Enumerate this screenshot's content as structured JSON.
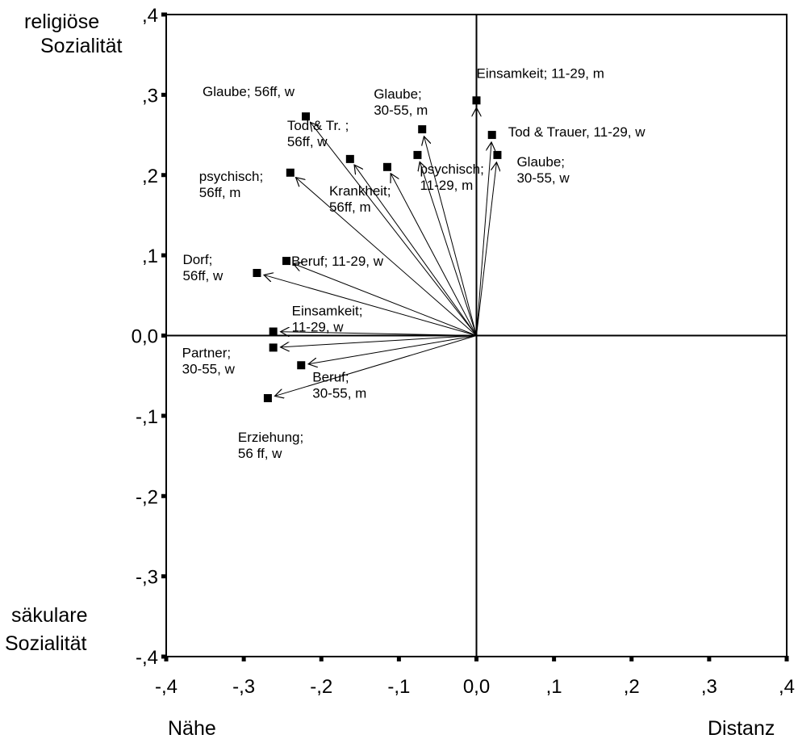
{
  "chart_data": {
    "type": "scatter",
    "xlim": [
      -0.4,
      0.4
    ],
    "ylim": [
      -0.4,
      0.4
    ],
    "x_ticks": [
      -0.4,
      -0.3,
      -0.2,
      -0.1,
      0,
      0.1,
      0.2,
      0.3,
      0.4
    ],
    "y_ticks": [
      -0.4,
      -0.3,
      -0.2,
      -0.1,
      0,
      0.1,
      0.2,
      0.3,
      0.4
    ],
    "x_tick_labels": [
      "-,4",
      "-,3",
      "-,2",
      "-,1",
      "0,0",
      ",1",
      ",2",
      ",3",
      ",4"
    ],
    "y_tick_labels": [
      "-,4",
      "-,3",
      "-,2",
      "-,1",
      "0,0",
      ",1",
      ",2",
      ",3",
      ",4"
    ],
    "x_left_label": "Nähe",
    "x_right_label": "Distanz",
    "y_top_label": [
      "religiöse",
      "Sozialität"
    ],
    "y_bottom_label": [
      "säkulare",
      "Sozialität"
    ],
    "grid": false,
    "origin_lines": true,
    "vectors_from_origin": true,
    "points": [
      {
        "label": [
          "Einsamkeit; 11-29, m"
        ],
        "x": 0.0,
        "y": 0.293
      },
      {
        "label": [
          "Tod & Trauer, 11-29, w"
        ],
        "x": 0.02,
        "y": 0.25
      },
      {
        "label": [
          "Glaube;",
          "30-55, w"
        ],
        "x": 0.027,
        "y": 0.225
      },
      {
        "label": [
          "Glaube;",
          "30-55, m"
        ],
        "x": -0.07,
        "y": 0.257
      },
      {
        "label": [
          "psychisch;",
          "11-29, m"
        ],
        "x": -0.076,
        "y": 0.225
      },
      {
        "label": [
          "Krankheit;",
          "56ff, m"
        ],
        "x": -0.115,
        "y": 0.21
      },
      {
        "label": [
          "Tod & Tr. ;",
          "56ff, w"
        ],
        "x": -0.163,
        "y": 0.22
      },
      {
        "label": [
          "Glaube; 56ff, w"
        ],
        "x": -0.22,
        "y": 0.273
      },
      {
        "label": [
          "psychisch;",
          "56ff, m"
        ],
        "x": -0.24,
        "y": 0.203
      },
      {
        "label": [
          "Beruf; 11-29, w"
        ],
        "x": -0.245,
        "y": 0.093
      },
      {
        "label": [
          "Dorf;",
          "56ff, w"
        ],
        "x": -0.283,
        "y": 0.078
      },
      {
        "label": [
          "Einsamkeit;",
          "11-29, w"
        ],
        "x": -0.262,
        "y": 0.005
      },
      {
        "label": [
          "Partner;",
          "30-55, w"
        ],
        "x": -0.262,
        "y": -0.015
      },
      {
        "label": [
          "Beruf;",
          "30-55, m"
        ],
        "x": -0.226,
        "y": -0.037
      },
      {
        "label": [
          "Erziehung;",
          "56 ff, w"
        ],
        "x": -0.269,
        "y": -0.078
      }
    ]
  }
}
